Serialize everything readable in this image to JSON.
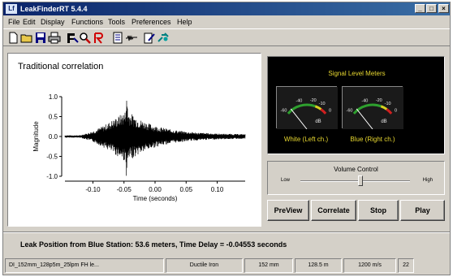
{
  "window": {
    "title": "LeakFinderRT 5.4.4",
    "icon_label": "Lf"
  },
  "menu": [
    "File",
    "Edit",
    "Display",
    "Functions",
    "Tools",
    "Preferences",
    "Help"
  ],
  "plot": {
    "title": "Traditional correlation",
    "chart_data": {
      "type": "line",
      "xlabel": "Time (seconds)",
      "ylabel": "Magnitude",
      "x_ticks": [
        "-0.10",
        "-0.05",
        "0.00",
        "0.05",
        "0.10"
      ],
      "y_ticks": [
        "1.0",
        "0.5",
        "0.0",
        "-0.5",
        "-1.0"
      ],
      "xlim": [
        -0.145,
        0.145
      ],
      "ylim": [
        -1.0,
        1.0
      ],
      "grid": false,
      "series": [
        {
          "color": "#000000",
          "peak_x": -0.0456,
          "peak_y": 1.0
        }
      ]
    }
  },
  "meters": {
    "title": "Signal Level Meters",
    "scale_labels": [
      "-60",
      "-40",
      "-20",
      "-10",
      "0"
    ],
    "unit": "dB",
    "left_caption": "White (Left ch.)",
    "right_caption": "Blue (Right ch.)",
    "left_level": 0.12,
    "right_level": 0.12
  },
  "volume": {
    "title": "Volume Control",
    "low": "Low",
    "high": "High",
    "level": 0.55
  },
  "buttons": {
    "preview": "PreView",
    "correlate": "Correlate",
    "stop": "Stop",
    "play": "Play"
  },
  "result": {
    "text": "Leak Position from Blue Station: 53.6 meters, Time Delay = -0.04553 seconds"
  },
  "status": {
    "file": "DI_152mm_128p5m_25lpm FH le...",
    "material": "Ductile Iron",
    "diameter": "152 mm",
    "length": "128.5 m",
    "velocity": "1200 m/s",
    "count": "22"
  },
  "colors": {
    "title_bar": "#0a246a",
    "meter_text": "#e8d830",
    "face": "#d4d0c8"
  }
}
